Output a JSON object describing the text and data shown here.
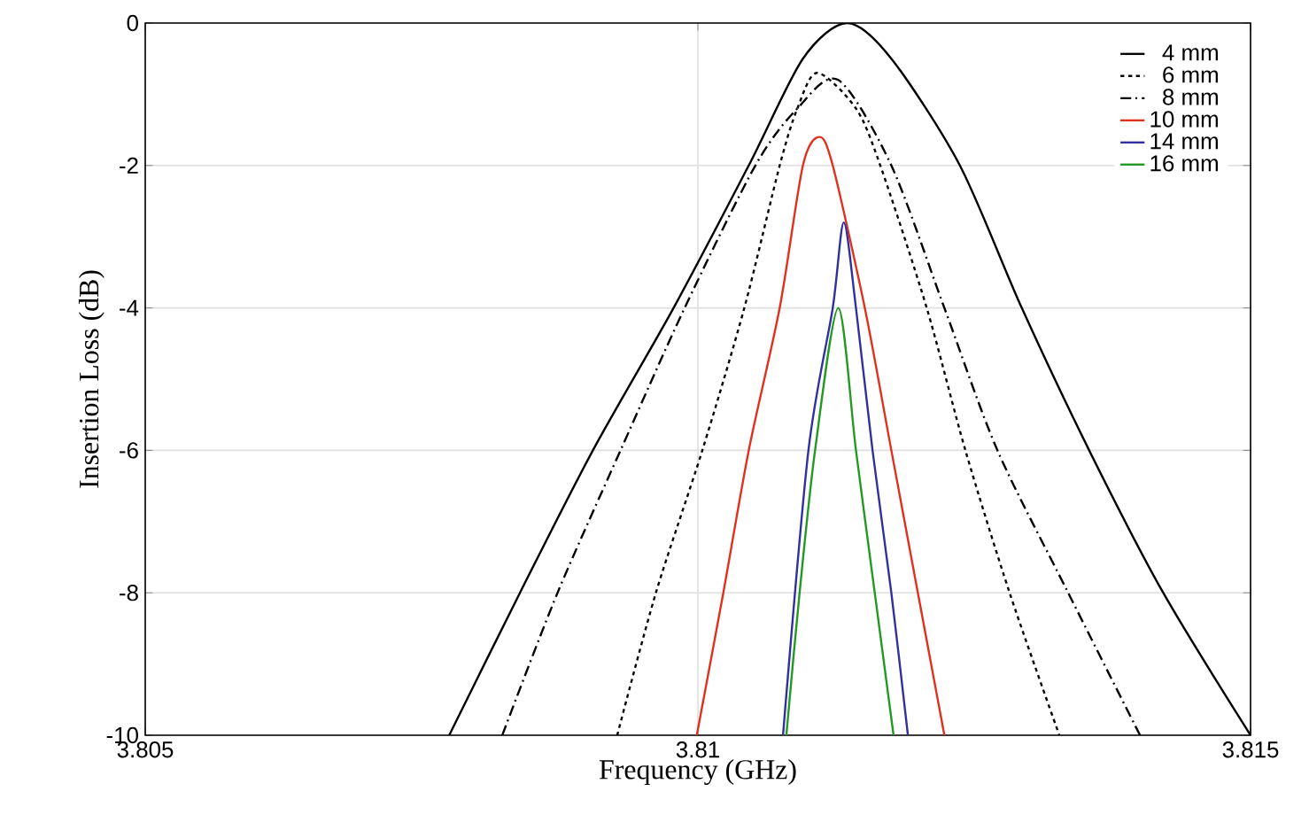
{
  "chart_data": {
    "type": "line",
    "xlabel": "Frequency (GHz)",
    "ylabel": "Insertion Loss (dB)",
    "xlim": [
      3.805,
      3.815
    ],
    "ylim": [
      -10,
      0
    ],
    "xticks": [
      3.805,
      3.81,
      3.815
    ],
    "yticks": [
      -10,
      -8,
      -6,
      -4,
      -2,
      0
    ],
    "grid": true,
    "legend": "top right",
    "marker": "none",
    "series": [
      {
        "name": "4 mm",
        "color": "#000000",
        "line_style": "solid",
        "x": [
          3.80775,
          3.80839,
          3.80905,
          3.80978,
          3.81046,
          3.81095,
          3.81135,
          3.81175,
          3.81237,
          3.81293,
          3.81354,
          3.81421,
          3.815
        ],
        "values": [
          -10,
          -8,
          -6,
          -4,
          -2,
          -0.5,
          0,
          -0.5,
          -2,
          -4,
          -6,
          -8,
          -10
        ]
      },
      {
        "name": "6 mm",
        "color": "#000000",
        "line_style": "dotted",
        "x": [
          3.80927,
          3.80962,
          3.81004,
          3.81042,
          3.81074,
          3.8109,
          3.81108,
          3.81143,
          3.81165,
          3.81207,
          3.81242,
          3.81282,
          3.81327
        ],
        "values": [
          -10,
          -8,
          -6,
          -4,
          -2,
          -1.2,
          -0.7,
          -1.2,
          -2,
          -4,
          -6,
          -8,
          -10
        ]
      },
      {
        "name": "8 mm",
        "color": "#000000",
        "line_style": "dashed",
        "x": [
          3.80823,
          3.80873,
          3.8093,
          3.80988,
          3.81052,
          3.8109,
          3.81127,
          3.81175,
          3.81223,
          3.81271,
          3.81335,
          3.814
        ],
        "values": [
          -10,
          -8,
          -6,
          -4,
          -2,
          -1.2,
          -0.8,
          -2,
          -4,
          -6,
          -8,
          -10
        ]
      },
      {
        "name": "10 mm",
        "color": "#e0301e",
        "line_style": "solid",
        "x": [
          3.80999,
          3.81023,
          3.81046,
          3.81074,
          3.81095,
          3.8111,
          3.81122,
          3.81151,
          3.81175,
          3.81199,
          3.81223
        ],
        "values": [
          -10,
          -8,
          -6,
          -4,
          -2,
          -1.6,
          -2,
          -4,
          -6,
          -8,
          -10
        ]
      },
      {
        "name": "14 mm",
        "color": "#3030a0",
        "line_style": "solid",
        "x": [
          3.81077,
          3.811,
          3.81122,
          3.81132,
          3.81143,
          3.81158,
          3.81175,
          3.8119
        ],
        "values": [
          -10,
          -6,
          -4,
          -2.8,
          -4,
          -6,
          -8,
          -10
        ]
      },
      {
        "name": "16 mm",
        "color": "#229922",
        "line_style": "solid",
        "x": [
          3.8108,
          3.81092,
          3.81106,
          3.81127,
          3.81143,
          3.8116,
          3.81177
        ],
        "values": [
          -10,
          -8,
          -6,
          -4,
          -6,
          -8,
          -10
        ]
      }
    ]
  }
}
